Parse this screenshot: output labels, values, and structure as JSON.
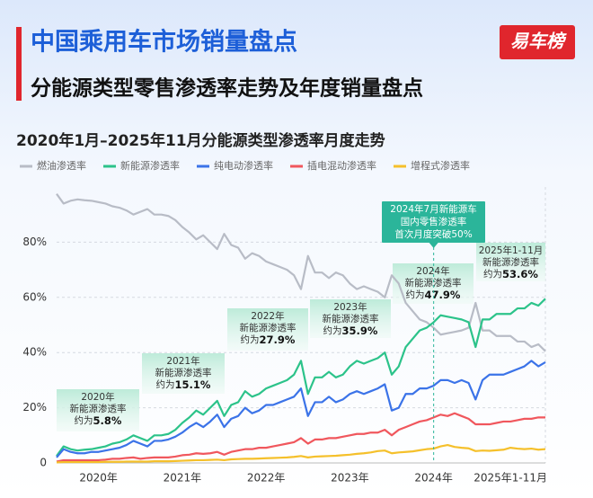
{
  "header": {
    "title": "中国乘用车市场销量盘点",
    "subtitle": "分能源类型零售渗透率走势及年度销量盘点",
    "logo": "易车榜"
  },
  "chart_data": {
    "type": "line",
    "title": "2020年1月–2025年11月分能源类型渗透率月度走势",
    "categories": [
      null,
      null,
      null,
      null,
      null,
      null,
      "2020年",
      null,
      null,
      null,
      null,
      null,
      null,
      null,
      null,
      null,
      null,
      null,
      "2021年",
      null,
      null,
      null,
      null,
      null,
      null,
      null,
      null,
      null,
      null,
      null,
      "2022年",
      null,
      null,
      null,
      null,
      null,
      null,
      null,
      null,
      null,
      null,
      null,
      "2023年",
      null,
      null,
      null,
      null,
      null,
      null,
      null,
      null,
      null,
      null,
      null,
      "2024年",
      null,
      null,
      null,
      null,
      null,
      null,
      null,
      null,
      null,
      null,
      "2025年1-11月",
      null,
      null,
      null,
      null,
      null
    ],
    "ylim": [
      0,
      100
    ],
    "yticks": [
      0,
      {
        "value": 20,
        "label": "20%"
      },
      {
        "value": 40,
        "label": "40%"
      },
      {
        "value": 60,
        "label": "60%"
      },
      {
        "value": 80,
        "label": "80%"
      }
    ],
    "grid": true,
    "series": [
      {
        "name": "燃油渗透率",
        "color": "#b8bcc6",
        "values": [
          97.5,
          94,
          95,
          95.5,
          95.2,
          95,
          94.5,
          94,
          93,
          92.5,
          91.5,
          90,
          91,
          92,
          90,
          90,
          89.5,
          88,
          85.5,
          83.5,
          81,
          82.5,
          80,
          77.5,
          83,
          79,
          78,
          74,
          76,
          75,
          73,
          72,
          71,
          70,
          68,
          63,
          75,
          69,
          69,
          67,
          69,
          68,
          65,
          63,
          64,
          63,
          62,
          60,
          68,
          65,
          58,
          55,
          52,
          51,
          49,
          46.5,
          47,
          47.5,
          48,
          49,
          58,
          48,
          48,
          46,
          46,
          46,
          44,
          44,
          42,
          43,
          40.5
        ]
      },
      {
        "name": "新能源渗透率",
        "color": "#2cc38a",
        "values": [
          2.5,
          6,
          5,
          4.5,
          4.8,
          5,
          5.5,
          6,
          7,
          7.5,
          8.5,
          10,
          9,
          8,
          10,
          10,
          10.5,
          12,
          14.5,
          16.5,
          19,
          17.5,
          20,
          22.5,
          17,
          21,
          22,
          26,
          24,
          25,
          27,
          28,
          29,
          30,
          32,
          37,
          25,
          31,
          31,
          33,
          31,
          32,
          35,
          37,
          36,
          37,
          38,
          40,
          32,
          35,
          42,
          45,
          48,
          49,
          51,
          53.5,
          53,
          52.5,
          52,
          51,
          42,
          52,
          52,
          54,
          54,
          54,
          56,
          56,
          58,
          57,
          59.5
        ]
      },
      {
        "name": "纯电动渗透率",
        "color": "#3b73e8",
        "values": [
          2,
          5,
          4,
          3.5,
          3.5,
          4,
          4,
          4.5,
          5,
          5.5,
          6.5,
          8,
          7,
          6,
          8,
          8,
          8.5,
          9.5,
          11,
          13,
          14.5,
          13,
          15,
          17.5,
          13,
          16,
          17,
          20,
          18,
          19,
          21,
          21,
          22,
          23,
          24,
          27,
          17,
          22,
          22,
          24,
          22,
          23,
          25,
          26,
          25,
          26,
          27,
          28.5,
          19,
          20,
          25,
          25,
          27,
          27,
          28,
          30,
          30,
          29,
          30,
          29,
          23,
          30,
          32,
          32,
          32,
          33,
          34,
          35,
          37,
          35,
          36.5
        ]
      },
      {
        "name": "插电混动渗透率",
        "color": "#f0575d",
        "values": [
          0.5,
          1,
          1,
          1,
          1,
          1,
          1,
          1.2,
          1.5,
          1.5,
          1.8,
          2,
          1.5,
          1.8,
          2,
          2,
          2,
          2.3,
          2.8,
          3,
          3.5,
          3.3,
          3.5,
          4,
          3,
          4,
          4.5,
          5,
          5,
          5.5,
          5.5,
          6,
          6.5,
          7,
          7.5,
          9,
          7,
          8.5,
          8.5,
          9,
          9,
          9.5,
          10,
          10.5,
          10.5,
          11,
          11,
          12,
          10,
          12,
          13,
          14,
          15,
          15.5,
          16.5,
          17.5,
          17,
          18,
          17,
          16,
          14,
          14,
          14,
          14.5,
          15,
          15,
          15.5,
          16,
          16,
          16.5,
          16.5
        ]
      },
      {
        "name": "增程式渗透率",
        "color": "#f5c02b",
        "values": [
          0.2,
          0.3,
          0.3,
          0.3,
          0.3,
          0.3,
          0.3,
          0.4,
          0.4,
          0.4,
          0.5,
          0.5,
          0.5,
          0.5,
          0.6,
          0.6,
          0.6,
          0.7,
          0.8,
          0.9,
          1,
          1,
          1.1,
          1.2,
          1,
          1.3,
          1.4,
          1.5,
          1.5,
          1.6,
          1.7,
          1.8,
          1.9,
          2,
          2.2,
          2.5,
          2,
          2.3,
          2.4,
          2.5,
          2.6,
          2.8,
          3,
          3.3,
          3.5,
          3.8,
          4.3,
          4.5,
          3.5,
          3.8,
          4,
          4.2,
          4.6,
          5,
          5.2,
          6,
          6.5,
          5.8,
          5.5,
          5.3,
          4.3,
          4.5,
          4.4,
          4.6,
          4.8,
          5.5,
          5.2,
          5,
          5.2,
          4.8,
          5
        ]
      }
    ],
    "annotations": [
      {
        "lines": [
          "2020年",
          "新能源渗透率"
        ],
        "prefix": "约为",
        "value": "5.8%"
      },
      {
        "lines": [
          "2021年",
          "新能源渗透率"
        ],
        "prefix": "约为",
        "value": "15.1%"
      },
      {
        "lines": [
          "2022年",
          "新能源渗透率"
        ],
        "prefix": "约为",
        "value": "27.9%"
      },
      {
        "lines": [
          "2023年",
          "新能源渗透率"
        ],
        "prefix": "约为",
        "value": "35.9%"
      },
      {
        "lines": [
          "2024年",
          "新能源渗透率"
        ],
        "prefix": "约为",
        "value": "47.9%"
      },
      {
        "lines": [
          "2025年1-11月",
          "新能源渗透率"
        ],
        "prefix": "约为",
        "value": "53.6%"
      }
    ],
    "callout": {
      "lines": [
        "2024年7月新能源车",
        "国内零售渗透率",
        "首次月度突破50%"
      ]
    }
  }
}
